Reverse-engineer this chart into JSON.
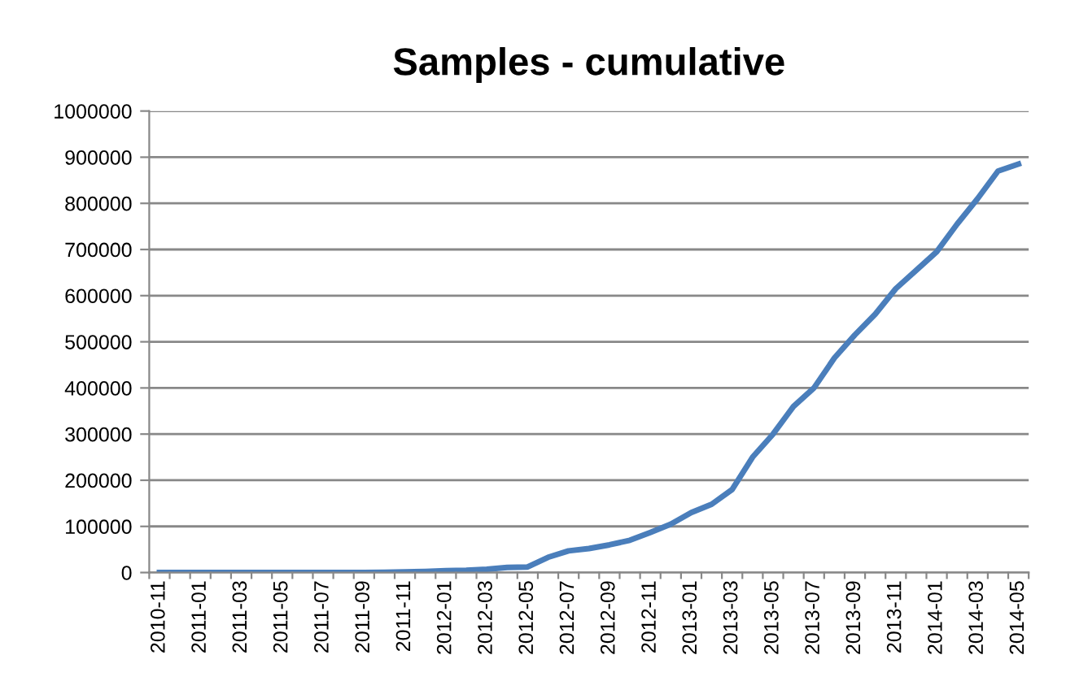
{
  "chart_data": {
    "type": "line",
    "title": "Samples - cumulative",
    "categories": [
      "2010-11",
      null,
      "2011-01",
      null,
      "2011-03",
      null,
      "2011-05",
      null,
      "2011-07",
      null,
      "2011-09",
      null,
      "2011-11",
      null,
      "2012-01",
      null,
      "2012-03",
      null,
      "2012-05",
      null,
      "2012-07",
      null,
      "2012-09",
      null,
      "2012-11",
      null,
      "2013-01",
      null,
      "2013-03",
      null,
      "2013-05",
      null,
      "2013-07",
      null,
      "2013-09",
      null,
      "2013-11",
      null,
      "2014-01",
      null,
      "2014-03",
      null,
      "2014-05"
    ],
    "series": [
      {
        "color": "#4a7ebb",
        "values": [
          0,
          0,
          0,
          0,
          0,
          0,
          0,
          0,
          0,
          0,
          0,
          500,
          1500,
          2500,
          4000,
          5000,
          7000,
          11000,
          12000,
          33000,
          47000,
          52000,
          60000,
          70000,
          87000,
          105000,
          130000,
          148000,
          180000,
          250000,
          300000,
          360000,
          400000,
          465000,
          515000,
          560000,
          615000,
          655000,
          695000,
          755000,
          810000,
          870000,
          885000
        ]
      }
    ],
    "ylim": [
      0,
      1000000
    ],
    "yticks": [
      0,
      100000,
      200000,
      300000,
      400000,
      500000,
      600000,
      700000,
      800000,
      900000,
      1000000
    ],
    "grid": "y",
    "legend": false,
    "marker": "none",
    "line_style": "solid"
  }
}
